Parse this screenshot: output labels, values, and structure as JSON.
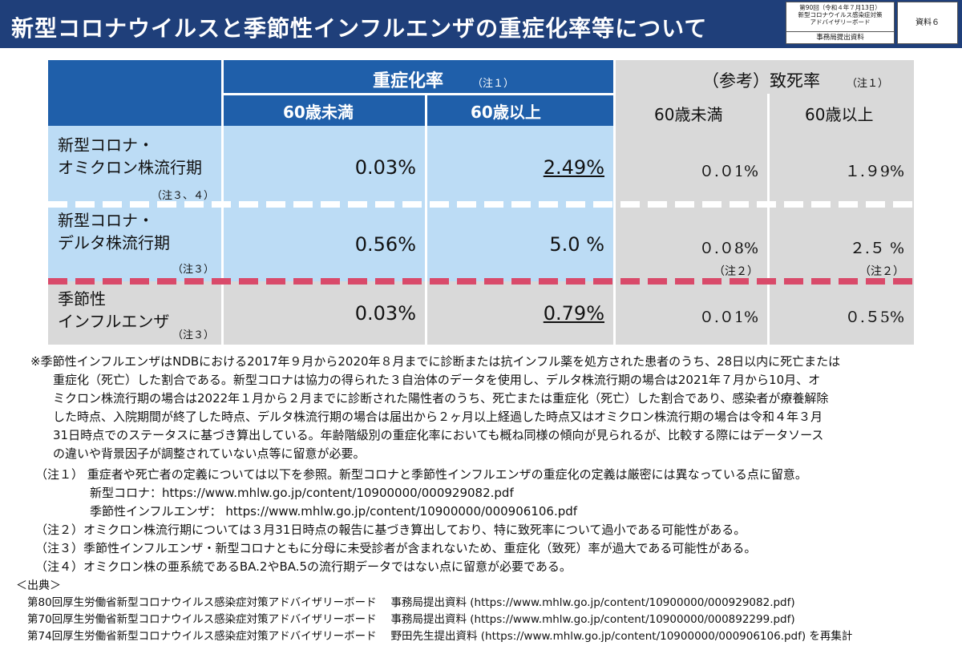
{
  "header": {
    "title": "新型コロナウイルスと季節性インフルエンザの重症化率等について",
    "meta": [
      "第90回（令和４年７月13日）",
      "新型コロナウイルス感染症対策",
      "アドバイザリーボード"
    ],
    "meta_bottom": "事務局提出資料",
    "shiryo": "資料６"
  },
  "table": {
    "severity_header": "重症化率",
    "severity_note": "（注１）",
    "mortality_header": "（参考）致死率",
    "mortality_note": "（注１）",
    "age_under60": "60歳未満",
    "age_over60": "60歳以上",
    "rows": [
      {
        "label1": "新型コロナ・",
        "label2": "オミクロン株流行期",
        "note": "（注３、４）",
        "sev_u60": "0.03%",
        "sev_o60": "2.49%",
        "mor_u60": "０.０1%",
        "mor_o60": "１.９9%",
        "mor_u60_note": "",
        "mor_o60_note": ""
      },
      {
        "label1": "新型コロナ・",
        "label2": "デルタ株流行期",
        "note": "（注３）",
        "sev_u60": "0.56%",
        "sev_o60": "5.0 %",
        "mor_u60": "０.０8%",
        "mor_o60": "２.５ %",
        "mor_u60_note": "（注２）",
        "mor_o60_note": "（注２）"
      },
      {
        "label1": "季節性",
        "label2": "インフルエンザ",
        "note": "（注３）",
        "sev_u60": "0.03%",
        "sev_o60": "0.79%",
        "mor_u60": "０.０1%",
        "mor_o60": "０.５5%",
        "mor_u60_note": "",
        "mor_o60_note": ""
      }
    ]
  },
  "footnotes": {
    "main": [
      "※季節性インフルエンザはNDBにおける2017年９月から2020年８月までに診断または抗インフル薬を処方された患者のうち、28日以内に死亡または",
      "重症化（死亡）した割合である。新型コロナは協力の得られた３自治体のデータを使用し、デルタ株流行期の場合は2021年７月から10月、オ",
      "ミクロン株流行期の場合は2022年１月から２月までに診断された陽性者のうち、死亡または重症化（死亡）した割合であり、感染者が療養解除",
      "した時点、入院期間が終了した時点、デルタ株流行期の場合は届出から２ヶ月以上経過した時点又はオミクロン株流行期の場合は令和４年３月",
      "31日時点でのステータスに基づき算出している。年齢階級別の重症化率においても概ね同様の傾向が見られるが、比較する際にはデータソース",
      "の違いや背景因子が調整されていない点等に留意が必要。"
    ],
    "note1": "（注１） 重症者や死亡者の定義については以下を参照。新型コロナと季節性インフルエンザの重症化の定義は厳密には異なっている点に留意。",
    "note1_covid": "新型コロナ：https://www.mhlw.go.jp/content/10900000/000929082.pdf",
    "note1_flu": "季節性インフルエンザ： https://www.mhlw.go.jp/content/10900000/000906106.pdf",
    "note2": "（注２）オミクロン株流行期については３月31日時点の報告に基づき算出しており、特に致死率について過小である可能性がある。",
    "note3": "（注３）季節性インフルエンザ・新型コロナともに分母に未受診者が含まれないため、重症化（致死）率が過大である可能性がある。",
    "note4": "（注４）オミクロン株の亜系統であるBA.2やBA.5の流行期データではない点に留意が必要である。",
    "source_header": "＜出典＞",
    "sources": [
      "第80回厚生労働省新型コロナウイルス感染症対策アドバイザリーボード　 事務局提出資料 (https://www.mhlw.go.jp/content/10900000/000929082.pdf)",
      "第70回厚生労働省新型コロナウイルス感染症対策アドバイザリーボード　 事務局提出資料 (https://www.mhlw.go.jp/content/10900000/000892299.pdf)",
      "第74回厚生労働省新型コロナウイルス感染症対策アドバイザリーボード　 野田先生提出資料 (https://www.mhlw.go.jp/content/10900000/000906106.pdf) を再集計"
    ]
  }
}
